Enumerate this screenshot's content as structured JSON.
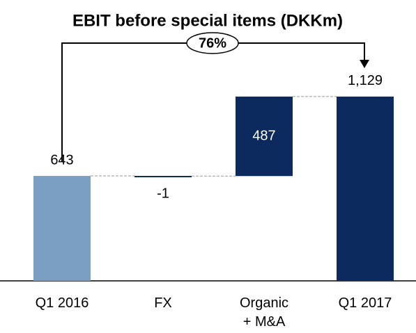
{
  "chart_data": {
    "type": "waterfall",
    "title": "EBIT before special items (DKKm)",
    "categories": [
      "Q1 2016",
      "FX",
      "Organic\n+ M&A",
      "Q1 2017"
    ],
    "values": [
      643,
      -1,
      487,
      1129
    ],
    "value_labels": [
      "643",
      "-1",
      "487",
      "1,129"
    ],
    "measure": [
      "absolute",
      "relative",
      "relative",
      "absolute"
    ],
    "colors": [
      "#7a9fc2",
      "#0d2a5e",
      "#0d2a5e",
      "#0d2a5e"
    ],
    "annotation": "76%"
  }
}
